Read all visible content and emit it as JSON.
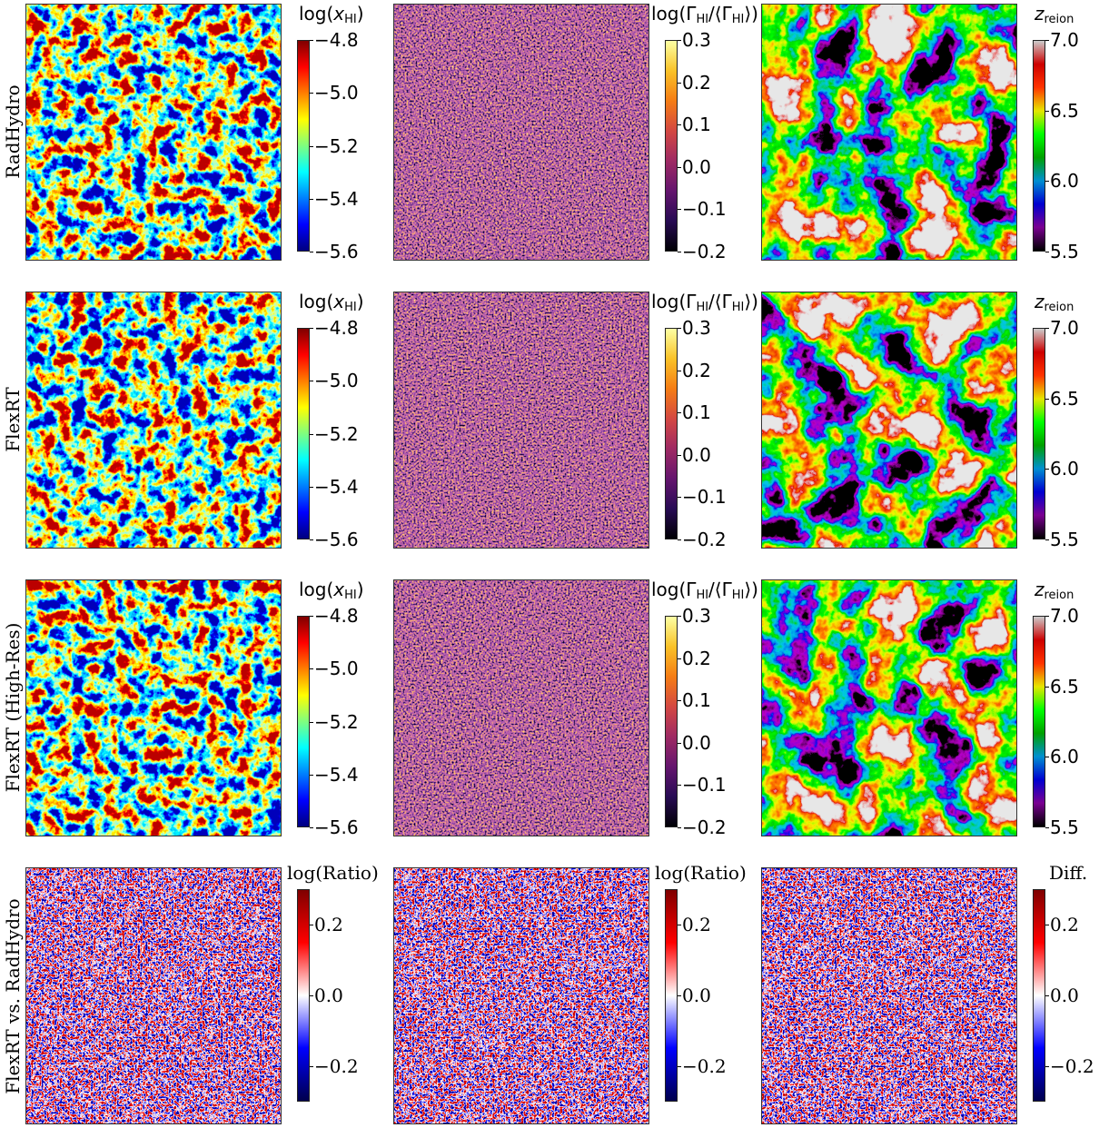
{
  "colormaps": {
    "jet": [
      "#00007f",
      "#0000ff",
      "#007fff",
      "#00ffff",
      "#7fff7f",
      "#ffff00",
      "#ff7f00",
      "#ff0000",
      "#7f0000"
    ],
    "inferno": [
      "#000004",
      "#280b54",
      "#65156e",
      "#9f2a63",
      "#d44842",
      "#f57d15",
      "#fac228",
      "#fcffa4"
    ],
    "zreion": [
      "#000000",
      "#7a0091",
      "#0000d0",
      "#0090d0",
      "#00a000",
      "#00ff00",
      "#e6e600",
      "#ff3300",
      "#cc0000",
      "#cccccc"
    ],
    "seismic": [
      "#00004c",
      "#0000ff",
      "#ffffff",
      "#ff0000",
      "#7f0000"
    ]
  },
  "rows": [
    {
      "label": "RadHydro"
    },
    {
      "label": "FlexRT"
    },
    {
      "label": "FlexRT (High-Res)"
    },
    {
      "label": "FlexRT vs. RadHydro"
    }
  ],
  "chart_data": [
    {
      "type": "heatmap",
      "row": 0,
      "col": 0,
      "colormap": "jet",
      "colorbar": {
        "title": [
          {
            "t": "log("
          },
          {
            "t": "x",
            "i": true
          },
          {
            "t": "HI",
            "s": true
          },
          {
            "t": ")"
          }
        ],
        "range": [
          -5.6,
          -4.8
        ],
        "ticks": [
          "−4.8",
          "−5.0",
          "−5.2",
          "−5.4",
          "−5.6"
        ],
        "tick_values": [
          -4.8,
          -5.0,
          -5.2,
          -5.4,
          -5.6
        ]
      }
    },
    {
      "type": "heatmap",
      "row": 0,
      "col": 1,
      "colormap": "inferno",
      "colorbar": {
        "title": [
          {
            "t": "log(Γ"
          },
          {
            "t": "HI",
            "s": true
          },
          {
            "t": "/⟨Γ"
          },
          {
            "t": "HI",
            "s": true
          },
          {
            "t": "⟩)"
          }
        ],
        "range": [
          -0.2,
          0.3
        ],
        "ticks": [
          "0.3",
          "0.2",
          "0.1",
          "0.0",
          "−0.1",
          "−0.2"
        ],
        "tick_values": [
          0.3,
          0.2,
          0.1,
          0.0,
          -0.1,
          -0.2
        ]
      }
    },
    {
      "type": "heatmap",
      "row": 0,
      "col": 2,
      "colormap": "zreion",
      "colorbar": {
        "title": [
          {
            "t": "z",
            "i": true
          },
          {
            "t": "reion",
            "s": true
          }
        ],
        "range": [
          5.5,
          7.0
        ],
        "ticks": [
          "7.0",
          "6.5",
          "6.0",
          "5.5"
        ],
        "tick_values": [
          7.0,
          6.5,
          6.0,
          5.5
        ]
      }
    },
    {
      "type": "heatmap",
      "row": 1,
      "col": 0,
      "colormap": "jet",
      "colorbar": {
        "title": [
          {
            "t": "log("
          },
          {
            "t": "x",
            "i": true
          },
          {
            "t": "HI",
            "s": true
          },
          {
            "t": ")"
          }
        ],
        "range": [
          -5.6,
          -4.8
        ],
        "ticks": [
          "−4.8",
          "−5.0",
          "−5.2",
          "−5.4",
          "−5.6"
        ],
        "tick_values": [
          -4.8,
          -5.0,
          -5.2,
          -5.4,
          -5.6
        ]
      }
    },
    {
      "type": "heatmap",
      "row": 1,
      "col": 1,
      "colormap": "inferno",
      "colorbar": {
        "title": [
          {
            "t": "log(Γ"
          },
          {
            "t": "HI",
            "s": true
          },
          {
            "t": "/⟨Γ"
          },
          {
            "t": "HI",
            "s": true
          },
          {
            "t": "⟩)"
          }
        ],
        "range": [
          -0.2,
          0.3
        ],
        "ticks": [
          "0.3",
          "0.2",
          "0.1",
          "0.0",
          "−0.1",
          "−0.2"
        ],
        "tick_values": [
          0.3,
          0.2,
          0.1,
          0.0,
          -0.1,
          -0.2
        ]
      }
    },
    {
      "type": "heatmap",
      "row": 1,
      "col": 2,
      "colormap": "zreion",
      "colorbar": {
        "title": [
          {
            "t": "z",
            "i": true
          },
          {
            "t": "reion",
            "s": true
          }
        ],
        "range": [
          5.5,
          7.0
        ],
        "ticks": [
          "7.0",
          "6.5",
          "6.0",
          "5.5"
        ],
        "tick_values": [
          7.0,
          6.5,
          6.0,
          5.5
        ]
      }
    },
    {
      "type": "heatmap",
      "row": 2,
      "col": 0,
      "colormap": "jet",
      "colorbar": {
        "title": [
          {
            "t": "log("
          },
          {
            "t": "x",
            "i": true
          },
          {
            "t": "HI",
            "s": true
          },
          {
            "t": ")"
          }
        ],
        "range": [
          -5.6,
          -4.8
        ],
        "ticks": [
          "−4.8",
          "−5.0",
          "−5.2",
          "−5.4",
          "−5.6"
        ],
        "tick_values": [
          -4.8,
          -5.0,
          -5.2,
          -5.4,
          -5.6
        ]
      }
    },
    {
      "type": "heatmap",
      "row": 2,
      "col": 1,
      "colormap": "inferno",
      "colorbar": {
        "title": [
          {
            "t": "log(Γ"
          },
          {
            "t": "HI",
            "s": true
          },
          {
            "t": "/⟨Γ"
          },
          {
            "t": "HI",
            "s": true
          },
          {
            "t": "⟩)"
          }
        ],
        "range": [
          -0.2,
          0.3
        ],
        "ticks": [
          "0.3",
          "0.2",
          "0.1",
          "0.0",
          "−0.1",
          "−0.2"
        ],
        "tick_values": [
          0.3,
          0.2,
          0.1,
          0.0,
          -0.1,
          -0.2
        ]
      }
    },
    {
      "type": "heatmap",
      "row": 2,
      "col": 2,
      "colormap": "zreion",
      "colorbar": {
        "title": [
          {
            "t": "z",
            "i": true
          },
          {
            "t": "reion",
            "s": true
          }
        ],
        "range": [
          5.5,
          7.0
        ],
        "ticks": [
          "7.0",
          "6.5",
          "6.0",
          "5.5"
        ],
        "tick_values": [
          7.0,
          6.5,
          6.0,
          5.5
        ]
      }
    },
    {
      "type": "heatmap",
      "row": 3,
      "col": 0,
      "colormap": "seismic",
      "colorbar": {
        "title": [
          {
            "t": "log(Ratio)"
          }
        ],
        "range": [
          -0.3,
          0.3
        ],
        "ticks": [
          "0.2",
          "0.0",
          "−0.2"
        ],
        "tick_values": [
          0.2,
          0.0,
          -0.2
        ]
      }
    },
    {
      "type": "heatmap",
      "row": 3,
      "col": 1,
      "colormap": "seismic",
      "colorbar": {
        "title": [
          {
            "t": "log(Ratio)"
          }
        ],
        "range": [
          -0.3,
          0.3
        ],
        "ticks": [
          "0.2",
          "0.0",
          "−0.2"
        ],
        "tick_values": [
          0.2,
          0.0,
          -0.2
        ]
      }
    },
    {
      "type": "heatmap",
      "row": 3,
      "col": 2,
      "colormap": "seismic",
      "colorbar": {
        "title": [
          {
            "t": "Diff."
          }
        ],
        "range": [
          -0.3,
          0.3
        ],
        "ticks": [
          "0.2",
          "0.0",
          "−0.2"
        ],
        "tick_values": [
          0.2,
          0.0,
          -0.2
        ]
      }
    }
  ]
}
